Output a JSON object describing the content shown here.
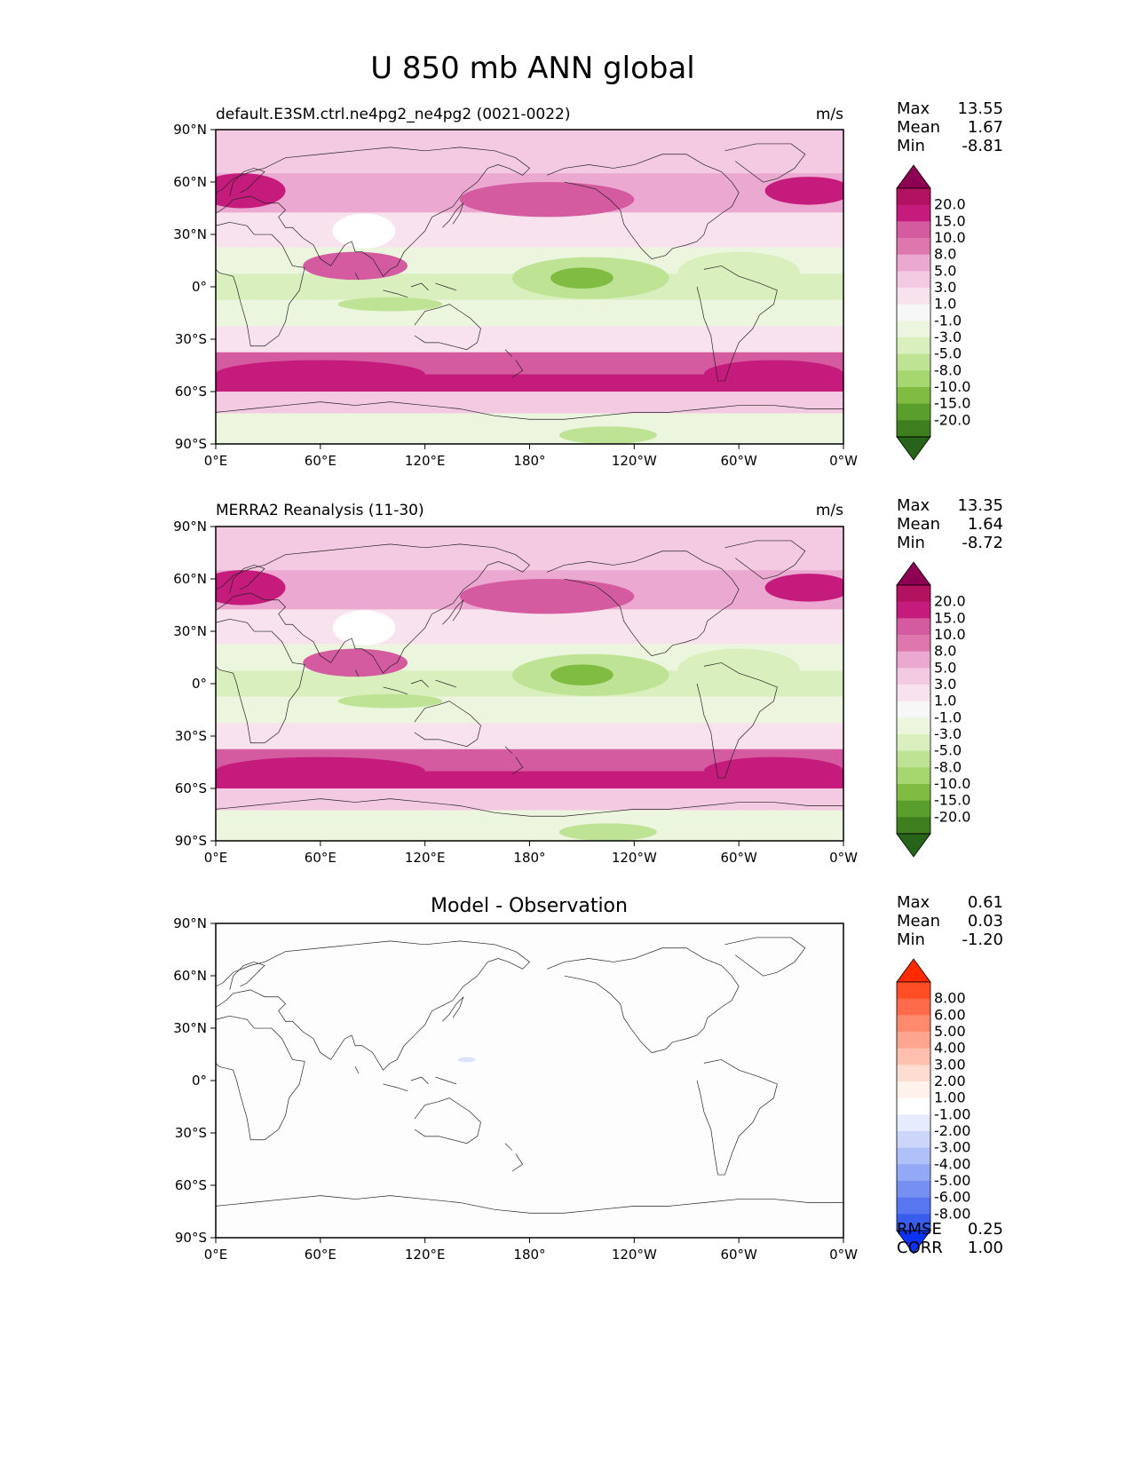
{
  "figure_title": "U 850 mb ANN global",
  "colors": {
    "land_outline": "#222222",
    "axes": "#000000",
    "diff_tint": "#dbe3fb"
  },
  "chart_data": [
    {
      "type": "heatmap",
      "panel": "model",
      "title": "default.E3SM.ctrl.ne4pg2_ne4pg2 (0021-0022)",
      "units": "m/s",
      "x_ticks": [
        "0°E",
        "60°E",
        "120°E",
        "180°",
        "120°W",
        "60°W",
        "0°W"
      ],
      "y_ticks": [
        "90°N",
        "60°N",
        "30°N",
        "0°",
        "30°S",
        "60°S",
        "90°S"
      ],
      "xlim": [
        0,
        360
      ],
      "ylim": [
        -90,
        90
      ],
      "stats": [
        {
          "label": "Max",
          "value": "13.55"
        },
        {
          "label": "Mean",
          "value": "1.67"
        },
        {
          "label": "Min",
          "value": "-8.81"
        }
      ],
      "colorbar": {
        "labels": [
          "20.0",
          "15.0",
          "10.0",
          "8.0",
          "5.0",
          "3.0",
          "1.0",
          "-1.0",
          "-3.0",
          "-5.0",
          "-8.0",
          "-10.0",
          "-15.0",
          "-20.0"
        ],
        "colors": [
          "#8e0152",
          "#b2125f",
          "#c51b7d",
          "#d55ba1",
          "#de77ae",
          "#eba8d0",
          "#f4cae3",
          "#f8e2ee",
          "#f7f7f7",
          "#ecf6de",
          "#d9efbd",
          "#bfe394",
          "#a6d66f",
          "#7fbc41",
          "#5a9e2e",
          "#3f7e1f",
          "#276419"
        ]
      },
      "field_bands": [
        {
          "lat": 75,
          "value": 3
        },
        {
          "lat": 55,
          "value": 6
        },
        {
          "lat": 30,
          "value": 2
        },
        {
          "lat": 15,
          "value": -2
        },
        {
          "lat": 0,
          "value": -4
        },
        {
          "lat": -15,
          "value": -2
        },
        {
          "lat": -30,
          "value": 2
        },
        {
          "lat": -45,
          "value": 9
        },
        {
          "lat": -55,
          "value": 12
        },
        {
          "lat": -65,
          "value": 4
        },
        {
          "lat": -80,
          "value": -3
        }
      ],
      "field_blobs": [
        {
          "lon": 215,
          "lat": 5,
          "rlon": 45,
          "rlat": 12,
          "value": -6
        },
        {
          "lon": 210,
          "lat": 5,
          "rlon": 18,
          "rlat": 6,
          "value": -9
        },
        {
          "lon": 300,
          "lat": 8,
          "rlon": 35,
          "rlat": 12,
          "value": -5
        },
        {
          "lon": 100,
          "lat": -10,
          "rlon": 30,
          "rlat": 4,
          "value": -6
        },
        {
          "lon": 80,
          "lat": 12,
          "rlon": 30,
          "rlat": 8,
          "value": 8
        },
        {
          "lon": 190,
          "lat": 50,
          "rlon": 50,
          "rlat": 10,
          "value": 9
        },
        {
          "lon": 15,
          "lat": 55,
          "rlon": 25,
          "rlat": 10,
          "value": 10
        },
        {
          "lon": 340,
          "lat": 55,
          "rlon": 25,
          "rlat": 8,
          "value": 12
        },
        {
          "lon": 60,
          "lat": -50,
          "rlon": 60,
          "rlat": 8,
          "value": 14
        },
        {
          "lon": 320,
          "lat": -50,
          "rlon": 40,
          "rlat": 8,
          "value": 13
        },
        {
          "lon": 85,
          "lat": 32,
          "rlon": 18,
          "rlat": 10,
          "value": null
        },
        {
          "lon": 225,
          "lat": -85,
          "rlon": 28,
          "rlat": 5,
          "value": -6
        }
      ]
    },
    {
      "type": "heatmap",
      "panel": "observation",
      "title": "MERRA2 Reanalysis (11-30)",
      "units": "m/s",
      "x_ticks": [
        "0°E",
        "60°E",
        "120°E",
        "180°",
        "120°W",
        "60°W",
        "0°W"
      ],
      "y_ticks": [
        "90°N",
        "60°N",
        "30°N",
        "0°",
        "30°S",
        "60°S",
        "90°S"
      ],
      "xlim": [
        0,
        360
      ],
      "ylim": [
        -90,
        90
      ],
      "stats": [
        {
          "label": "Max",
          "value": "13.35"
        },
        {
          "label": "Mean",
          "value": "1.64"
        },
        {
          "label": "Min",
          "value": "-8.72"
        }
      ],
      "colorbar": {
        "labels": [
          "20.0",
          "15.0",
          "10.0",
          "8.0",
          "5.0",
          "3.0",
          "1.0",
          "-1.0",
          "-3.0",
          "-5.0",
          "-8.0",
          "-10.0",
          "-15.0",
          "-20.0"
        ],
        "colors": [
          "#8e0152",
          "#b2125f",
          "#c51b7d",
          "#d55ba1",
          "#de77ae",
          "#eba8d0",
          "#f4cae3",
          "#f8e2ee",
          "#f7f7f7",
          "#ecf6de",
          "#d9efbd",
          "#bfe394",
          "#a6d66f",
          "#7fbc41",
          "#5a9e2e",
          "#3f7e1f",
          "#276419"
        ]
      },
      "field_bands": [
        {
          "lat": 75,
          "value": 3
        },
        {
          "lat": 55,
          "value": 6
        },
        {
          "lat": 30,
          "value": 2
        },
        {
          "lat": 15,
          "value": -2
        },
        {
          "lat": 0,
          "value": -4
        },
        {
          "lat": -15,
          "value": -2
        },
        {
          "lat": -30,
          "value": 2
        },
        {
          "lat": -45,
          "value": 9
        },
        {
          "lat": -55,
          "value": 12
        },
        {
          "lat": -65,
          "value": 4
        },
        {
          "lat": -80,
          "value": -3
        }
      ],
      "field_blobs": [
        {
          "lon": 215,
          "lat": 5,
          "rlon": 45,
          "rlat": 12,
          "value": -6
        },
        {
          "lon": 210,
          "lat": 5,
          "rlon": 18,
          "rlat": 6,
          "value": -9
        },
        {
          "lon": 300,
          "lat": 8,
          "rlon": 35,
          "rlat": 12,
          "value": -5
        },
        {
          "lon": 100,
          "lat": -10,
          "rlon": 30,
          "rlat": 4,
          "value": -6
        },
        {
          "lon": 80,
          "lat": 12,
          "rlon": 30,
          "rlat": 8,
          "value": 8
        },
        {
          "lon": 190,
          "lat": 50,
          "rlon": 50,
          "rlat": 10,
          "value": 9
        },
        {
          "lon": 15,
          "lat": 55,
          "rlon": 25,
          "rlat": 10,
          "value": 10
        },
        {
          "lon": 340,
          "lat": 55,
          "rlon": 25,
          "rlat": 8,
          "value": 12
        },
        {
          "lon": 60,
          "lat": -50,
          "rlon": 60,
          "rlat": 8,
          "value": 14
        },
        {
          "lon": 320,
          "lat": -50,
          "rlon": 40,
          "rlat": 8,
          "value": 13
        },
        {
          "lon": 85,
          "lat": 32,
          "rlon": 18,
          "rlat": 10,
          "value": null
        },
        {
          "lon": 225,
          "lat": -85,
          "rlon": 28,
          "rlat": 5,
          "value": -6
        }
      ]
    },
    {
      "type": "heatmap",
      "panel": "difference",
      "title": "Model - Observation",
      "units": "",
      "x_ticks": [
        "0°E",
        "60°E",
        "120°E",
        "180°",
        "120°W",
        "60°W",
        "0°W"
      ],
      "y_ticks": [
        "90°N",
        "60°N",
        "30°N",
        "0°",
        "30°S",
        "60°S",
        "90°S"
      ],
      "xlim": [
        0,
        360
      ],
      "ylim": [
        -90,
        90
      ],
      "stats": [
        {
          "label": "Max",
          "value": "0.61"
        },
        {
          "label": "Mean",
          "value": "0.03"
        },
        {
          "label": "Min",
          "value": "-1.20"
        }
      ],
      "bottom_stats": [
        {
          "label": "RMSE",
          "value": "0.25"
        },
        {
          "label": "CORR",
          "value": "1.00"
        }
      ],
      "colorbar": {
        "labels": [
          "8.00",
          "6.00",
          "5.00",
          "4.00",
          "3.00",
          "2.00",
          "1.00",
          "-1.00",
          "-2.00",
          "-3.00",
          "-4.00",
          "-5.00",
          "-6.00",
          "-8.00"
        ],
        "colors": [
          "#ff2a00",
          "#ff4d26",
          "#ff6a4a",
          "#ff8a6e",
          "#ffa58f",
          "#ffc0b0",
          "#ffdcd2",
          "#fff1ec",
          "#ffffff",
          "#e6ebfd",
          "#ccd6fb",
          "#b0c0f8",
          "#93a9f5",
          "#7690f2",
          "#5876ef",
          "#3a5cec",
          "#0d33ff"
        ]
      },
      "field_bands": [],
      "field_blobs": [
        {
          "lon": 144,
          "lat": 12,
          "rlon": 5,
          "rlat": 1.5,
          "value": -1.2
        }
      ]
    }
  ]
}
